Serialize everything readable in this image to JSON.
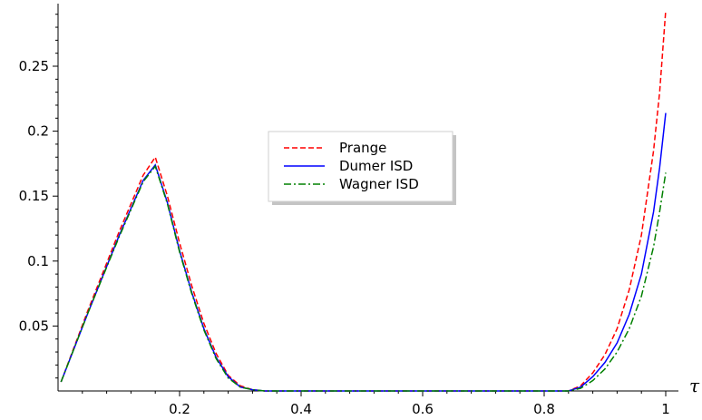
{
  "chart_data": {
    "type": "line",
    "title": "",
    "xlabel": "τ",
    "ylabel": "",
    "xlim": [
      0,
      1
    ],
    "ylim": [
      0,
      0.3
    ],
    "x_ticks": [
      0.2,
      0.4,
      0.6,
      0.8,
      1
    ],
    "x_tick_labels": [
      "0.2",
      "0.4",
      "0.6",
      "0.8",
      "1"
    ],
    "y_ticks": [
      0.05,
      0.1,
      0.15,
      0.2,
      0.25
    ],
    "y_tick_labels": [
      "0.05",
      "0.1",
      "0.15",
      "0.2",
      "0.25"
    ],
    "grid": false,
    "legend_position": "center",
    "series": [
      {
        "name": "Prange",
        "color": "#ff0000",
        "style": "dashed",
        "x": [
          0.005,
          0.05,
          0.1,
          0.14,
          0.16,
          0.18,
          0.2,
          0.22,
          0.24,
          0.26,
          0.28,
          0.3,
          0.32,
          0.34,
          0.4,
          0.5,
          0.6,
          0.7,
          0.8,
          0.84,
          0.86,
          0.88,
          0.9,
          0.92,
          0.94,
          0.96,
          0.98,
          0.99,
          1.0
        ],
        "y": [
          0.007,
          0.063,
          0.122,
          0.166,
          0.18,
          0.15,
          0.114,
          0.081,
          0.052,
          0.029,
          0.012,
          0.004,
          0.001,
          0.0,
          0.0,
          0.0,
          0.0,
          0.0,
          0.0,
          0.0,
          0.004,
          0.014,
          0.028,
          0.048,
          0.078,
          0.12,
          0.185,
          0.23,
          0.293
        ]
      },
      {
        "name": "Dumer ISD",
        "color": "#0000ff",
        "style": "solid",
        "x": [
          0.005,
          0.05,
          0.1,
          0.14,
          0.16,
          0.18,
          0.2,
          0.22,
          0.24,
          0.26,
          0.28,
          0.3,
          0.32,
          0.34,
          0.4,
          0.5,
          0.6,
          0.7,
          0.8,
          0.84,
          0.86,
          0.88,
          0.9,
          0.92,
          0.94,
          0.96,
          0.98,
          0.99,
          1.0
        ],
        "y": [
          0.007,
          0.061,
          0.119,
          0.162,
          0.174,
          0.145,
          0.108,
          0.076,
          0.048,
          0.026,
          0.011,
          0.003,
          0.001,
          0.0,
          0.0,
          0.0,
          0.0,
          0.0,
          0.0,
          0.0,
          0.003,
          0.011,
          0.022,
          0.037,
          0.059,
          0.09,
          0.138,
          0.172,
          0.214
        ]
      },
      {
        "name": "Wagner ISD",
        "color": "#008000",
        "style": "dashdot",
        "x": [
          0.005,
          0.05,
          0.1,
          0.14,
          0.16,
          0.18,
          0.2,
          0.22,
          0.24,
          0.26,
          0.28,
          0.3,
          0.32,
          0.34,
          0.4,
          0.5,
          0.6,
          0.7,
          0.8,
          0.84,
          0.86,
          0.88,
          0.9,
          0.92,
          0.94,
          0.96,
          0.98,
          0.99,
          1.0
        ],
        "y": [
          0.007,
          0.061,
          0.118,
          0.161,
          0.173,
          0.144,
          0.107,
          0.075,
          0.047,
          0.025,
          0.01,
          0.003,
          0.001,
          0.0,
          0.0,
          0.0,
          0.0,
          0.0,
          0.0,
          0.0,
          0.002,
          0.008,
          0.017,
          0.03,
          0.048,
          0.073,
          0.111,
          0.138,
          0.168
        ]
      }
    ]
  }
}
